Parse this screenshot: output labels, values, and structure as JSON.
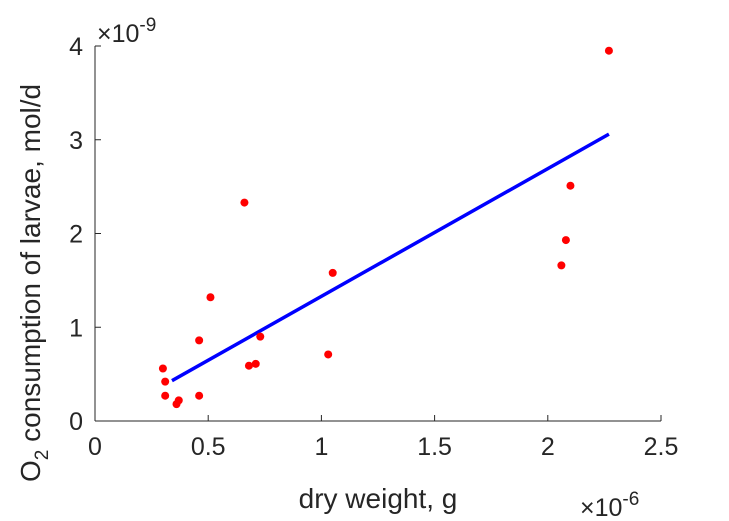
{
  "chart_data": {
    "type": "scatter",
    "xlabel": "dry weight, g",
    "ylabel_main": "O",
    "ylabel_sub": "2",
    "ylabel_rest": " consumption of larvae, mol/d",
    "x_exponent": "-6",
    "y_exponent": "-9",
    "x_multiplier": "×10",
    "y_multiplier": "×10",
    "xlim": [
      0,
      2.5
    ],
    "ylim": [
      0,
      4
    ],
    "x_ticks": [
      0,
      0.5,
      1,
      1.5,
      2,
      2.5
    ],
    "x_tick_labels": [
      "0",
      "0.5",
      "1",
      "1.5",
      "2",
      "2.5"
    ],
    "y_ticks": [
      0,
      1,
      2,
      3,
      4
    ],
    "y_tick_labels": [
      "0",
      "1",
      "2",
      "3",
      "4"
    ],
    "grid": false,
    "point_color": "#ff0000",
    "line_color": "#0000ff",
    "points": [
      {
        "x": 0.3,
        "y": 0.56
      },
      {
        "x": 0.31,
        "y": 0.27
      },
      {
        "x": 0.31,
        "y": 0.42
      },
      {
        "x": 0.36,
        "y": 0.18
      },
      {
        "x": 0.37,
        "y": 0.22
      },
      {
        "x": 0.46,
        "y": 0.86
      },
      {
        "x": 0.46,
        "y": 0.27
      },
      {
        "x": 0.51,
        "y": 1.32
      },
      {
        "x": 0.66,
        "y": 2.33
      },
      {
        "x": 0.68,
        "y": 0.59
      },
      {
        "x": 0.71,
        "y": 0.61
      },
      {
        "x": 0.73,
        "y": 0.9
      },
      {
        "x": 1.03,
        "y": 0.71
      },
      {
        "x": 1.05,
        "y": 1.58
      },
      {
        "x": 2.06,
        "y": 1.66
      },
      {
        "x": 2.08,
        "y": 1.93
      },
      {
        "x": 2.1,
        "y": 2.51
      },
      {
        "x": 2.27,
        "y": 3.95
      }
    ],
    "fit_line": {
      "x": [
        0.34,
        2.27
      ],
      "y": [
        0.43,
        3.06
      ]
    }
  }
}
